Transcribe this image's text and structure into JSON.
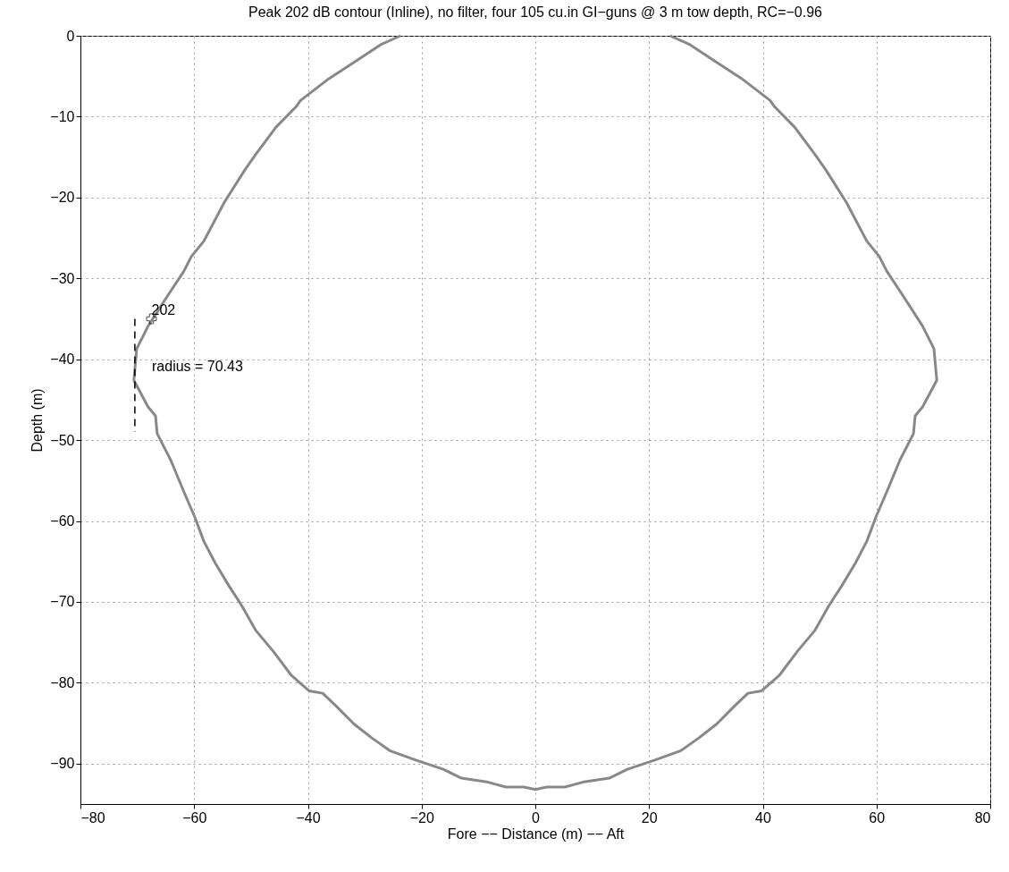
{
  "chart_data": {
    "type": "line",
    "title": "Peak 202 dB contour (Inline), no filter, four 105 cu.in GI−guns @ 3 m tow depth, RC=−0.96",
    "xlabel": "Fore −− Distance (m) −− Aft",
    "ylabel": "Depth (m)",
    "xlim": [
      -80,
      80
    ],
    "ylim": [
      -95,
      0
    ],
    "xticks": [
      -80,
      -60,
      -40,
      -20,
      0,
      20,
      40,
      60,
      80
    ],
    "yticks": [
      -90,
      -80,
      -70,
      -60,
      -50,
      -40,
      -30,
      -20,
      -10,
      0
    ],
    "grid": true,
    "series": [
      {
        "color": "#888888",
        "line_style": "solid",
        "x": [
          -23.7,
          -27.2,
          -31.9,
          -36.3,
          -41.3,
          -42.1,
          -45.6,
          -49.2,
          -51.1,
          -54.7,
          -58.3,
          -60.5,
          -61.8,
          -64.9,
          -68.1,
          -70.1,
          -70.6,
          -68.1,
          -66.8,
          -66.5,
          -64.1,
          -61.8,
          -59.9,
          -58.3,
          -56.3,
          -53.9,
          -51.6,
          -49.2,
          -46.1,
          -42.9,
          -39.8,
          -37.4,
          -35,
          -31.9,
          -28.8,
          -25.6,
          -20.9,
          -16.2,
          -13,
          -8.3,
          -5.2,
          -2,
          0,
          2,
          5.2,
          8.3,
          13,
          16.2,
          20.9,
          25.6,
          28.8,
          31.9,
          35,
          37.4,
          39.8,
          42.9,
          46.1,
          49.2,
          51.6,
          53.9,
          56.3,
          58.3,
          59.9,
          61.8,
          64.1,
          66.5,
          66.8,
          68.1,
          70.6,
          70.1,
          68.1,
          64.9,
          61.8,
          60.5,
          58.3,
          54.7,
          51.1,
          49.2,
          45.6,
          42.1,
          41.3,
          36.3,
          31.9,
          27.2,
          23.7
        ],
        "values": [
          0,
          -1.1,
          -3.3,
          -5.3,
          -8,
          -8.8,
          -11.3,
          -14.7,
          -16.6,
          -20.6,
          -25.4,
          -27.3,
          -29.1,
          -32.4,
          -35.9,
          -38.7,
          -42.6,
          -45.9,
          -47,
          -49.2,
          -52.5,
          -56.4,
          -59.5,
          -62.5,
          -65.2,
          -68,
          -70.5,
          -73.5,
          -76.1,
          -79.1,
          -81,
          -81.3,
          -82.9,
          -85.1,
          -86.8,
          -88.4,
          -89.6,
          -90.7,
          -91.8,
          -92.3,
          -92.9,
          -92.9,
          -93.2,
          -92.9,
          -92.9,
          -92.3,
          -91.8,
          -90.7,
          -89.6,
          -88.4,
          -86.8,
          -85.1,
          -82.9,
          -81.3,
          -81,
          -79.1,
          -76.1,
          -73.5,
          -70.5,
          -68,
          -65.2,
          -62.5,
          -59.5,
          -56.4,
          -52.5,
          -49.2,
          -47,
          -45.9,
          -42.6,
          -38.7,
          -35.9,
          -32.4,
          -29.1,
          -27.3,
          -25.4,
          -20.6,
          -16.6,
          -14.7,
          -11.3,
          -8.8,
          -8,
          -5.3,
          -3.3,
          -1.1,
          0
        ]
      },
      {
        "type": "line",
        "color": "#000000",
        "line_style": "dashed",
        "x": [
          -70.43,
          -70.43
        ],
        "values": [
          -35,
          -49
        ]
      },
      {
        "type": "scatter",
        "color": "#000000",
        "marker": "cross",
        "x": [
          -67.5
        ],
        "values": [
          -35
        ]
      }
    ],
    "annotations": [
      {
        "text": "202",
        "x": -67.5,
        "y": -35
      },
      "radius = 70.43"
    ]
  }
}
